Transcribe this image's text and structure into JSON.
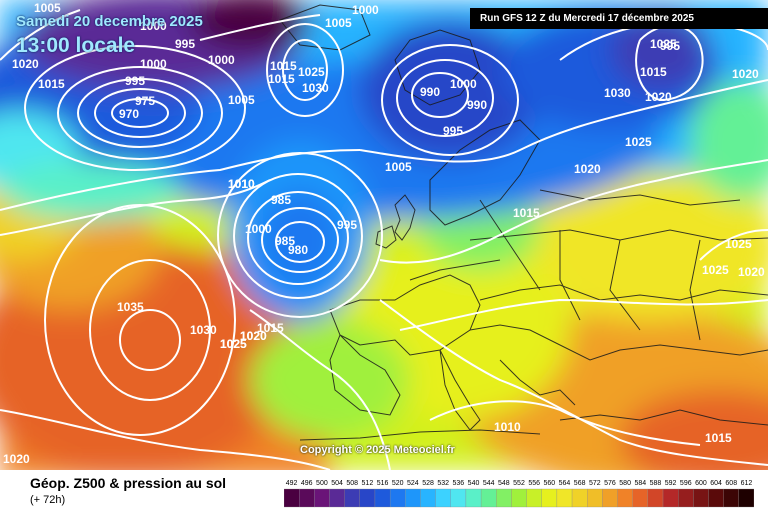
{
  "header": {
    "valid_date": "Samedi 20 decembre 2025",
    "valid_time": "13:00 locale",
    "run_info": "Run GFS 12 Z du Mercredi 17 décembre 2025"
  },
  "copyright": "Copyright © 2025 Meteociel.fr",
  "footer": {
    "product": "Géop. Z500 & pression au sol",
    "lead_time": "(+ 72h)"
  },
  "legend": {
    "values": [
      "492",
      "496",
      "500",
      "504",
      "508",
      "512",
      "516",
      "520",
      "524",
      "528",
      "532",
      "536",
      "540",
      "544",
      "548",
      "552",
      "556",
      "560",
      "564",
      "568",
      "572",
      "576",
      "580",
      "584",
      "588",
      "592",
      "596",
      "600",
      "604",
      "608",
      "612"
    ],
    "colors": [
      "#4a0040",
      "#5a0a5a",
      "#6a1478",
      "#5a2a96",
      "#3c3cb4",
      "#2846c8",
      "#1e5adc",
      "#1e78f0",
      "#1e96fa",
      "#28b4ff",
      "#3cd2ff",
      "#50e6f0",
      "#5af0c8",
      "#64f096",
      "#82f064",
      "#a0f03c",
      "#c8f028",
      "#e6f01e",
      "#f0e628",
      "#f0d228",
      "#f0be28",
      "#f0a028",
      "#f08228",
      "#e66428",
      "#d24628",
      "#b42828",
      "#961e1e",
      "#781414",
      "#5a0a0a",
      "#3c0505",
      "#1e0000"
    ]
  },
  "isobar_labels": [
    "1005",
    "1000",
    "1005",
    "1000",
    "1015",
    "1020",
    "995",
    "1000",
    "1015",
    "995",
    "975",
    "970",
    "1000",
    "1005",
    "1030",
    "1015",
    "1010",
    "1025",
    "1025",
    "990",
    "995",
    "1000",
    "990",
    "995",
    "1030",
    "1015",
    "1020",
    "1020",
    "1025",
    "1005",
    "1020",
    "1010",
    "985",
    "995",
    "1000",
    "985",
    "980",
    "1015",
    "1025",
    "1020",
    "1035",
    "1030",
    "1025",
    "1020",
    "1015",
    "1010",
    "1020",
    "1015",
    "1025",
    "1025",
    "1020"
  ]
}
